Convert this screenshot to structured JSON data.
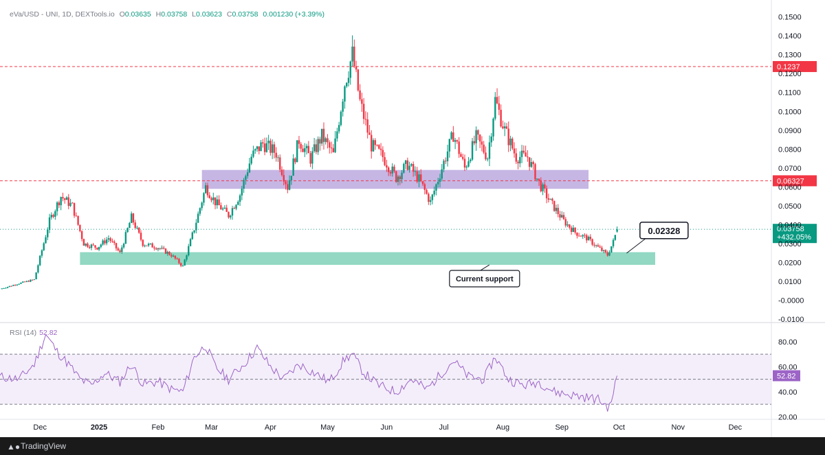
{
  "header": {
    "symbol": "eVa/USD - UNI, 1D, DEXTools.io",
    "o_label": "O",
    "o_value": "0.03635",
    "h_label": "H",
    "h_value": "0.03758",
    "l_label": "L",
    "l_value": "0.03623",
    "c_label": "C",
    "c_value": "0.03758",
    "change": "0.001230 (+3.39%)"
  },
  "rsi": {
    "label": "RSI (14)",
    "value": "52.82"
  },
  "footer": {
    "brand": "TradingView",
    "logo": "tradingview-logo-icon"
  },
  "colors": {
    "up": "#089981",
    "down": "#f23645",
    "rsi": "#9c64c6",
    "resistance_line": "#f23645",
    "support_zone": "#7fd1b9",
    "purple_zone": "#b39ddb"
  },
  "chart_data": [
    {
      "type": "line",
      "price_series_approx": [
        [
          "2024-11-10",
          0.006
        ],
        [
          "2024-11-20",
          0.009
        ],
        [
          "2024-11-28",
          0.011
        ],
        [
          "2024-12-06",
          0.042
        ],
        [
          "2024-12-12",
          0.055
        ],
        [
          "2024-12-18",
          0.05
        ],
        [
          "2024-12-24",
          0.03
        ],
        [
          "2024-12-31",
          0.028
        ],
        [
          "2025-01-06",
          0.033
        ],
        [
          "2025-01-12",
          0.025
        ],
        [
          "2025-01-18",
          0.044
        ],
        [
          "2025-01-24",
          0.03
        ],
        [
          "2025-02-01",
          0.028
        ],
        [
          "2025-02-08",
          0.024
        ],
        [
          "2025-02-14",
          0.018
        ],
        [
          "2025-02-20",
          0.038
        ],
        [
          "2025-02-26",
          0.06
        ],
        [
          "2025-03-03",
          0.052
        ],
        [
          "2025-03-10",
          0.045
        ],
        [
          "2025-03-16",
          0.056
        ],
        [
          "2025-03-22",
          0.076
        ],
        [
          "2025-03-28",
          0.083
        ],
        [
          "2025-04-04",
          0.078
        ],
        [
          "2025-04-10",
          0.06
        ],
        [
          "2025-04-16",
          0.085
        ],
        [
          "2025-04-22",
          0.075
        ],
        [
          "2025-04-28",
          0.087
        ],
        [
          "2025-05-04",
          0.077
        ],
        [
          "2025-05-10",
          0.115
        ],
        [
          "2025-05-14",
          0.13
        ],
        [
          "2025-05-18",
          0.105
        ],
        [
          "2025-05-24",
          0.082
        ],
        [
          "2025-05-30",
          0.076
        ],
        [
          "2025-06-06",
          0.065
        ],
        [
          "2025-06-12",
          0.072
        ],
        [
          "2025-06-18",
          0.064
        ],
        [
          "2025-06-24",
          0.052
        ],
        [
          "2025-06-30",
          0.07
        ],
        [
          "2025-07-06",
          0.088
        ],
        [
          "2025-07-12",
          0.07
        ],
        [
          "2025-07-18",
          0.086
        ],
        [
          "2025-07-24",
          0.076
        ],
        [
          "2025-07-28",
          0.106
        ],
        [
          "2025-08-02",
          0.09
        ],
        [
          "2025-08-08",
          0.076
        ],
        [
          "2025-08-14",
          0.076
        ],
        [
          "2025-08-20",
          0.062
        ],
        [
          "2025-08-26",
          0.052
        ],
        [
          "2025-09-02",
          0.042
        ],
        [
          "2025-09-08",
          0.036
        ],
        [
          "2025-09-14",
          0.033
        ],
        [
          "2025-09-20",
          0.028
        ],
        [
          "2025-09-25",
          0.024
        ],
        [
          "2025-09-28",
          0.031
        ],
        [
          "2025-09-30",
          0.0376
        ]
      ],
      "last_price": "0.03758",
      "last_change": "+432.05%",
      "y_axis_ticks": [
        "0.1500",
        "0.1400",
        "0.1300",
        "0.1200",
        "0.1100",
        "0.1000",
        "0.0900",
        "0.0800",
        "0.0700",
        "0.0600",
        "0.0500",
        "0.0400",
        "0.0300",
        "0.0200",
        "0.0100",
        "-0.0000",
        "-0.0100"
      ],
      "x_axis_ticks": [
        "Dec",
        "2025",
        "Feb",
        "Mar",
        "Apr",
        "May",
        "Jun",
        "Jul",
        "Aug",
        "Sep",
        "Oct",
        "Nov",
        "Dec"
      ],
      "ylim": [
        -0.011,
        0.156
      ],
      "xlim": [
        "2024-11-10",
        "2025-12-20"
      ],
      "resistance_lines": [
        {
          "value": 0.1237,
          "label": "0.1237"
        },
        {
          "value": 0.06327,
          "label": "0.06327"
        }
      ],
      "zones": [
        {
          "name": "purple-zone",
          "x_start": "2025-02-24",
          "x_end": "2025-09-15",
          "y_low": 0.059,
          "y_high": 0.069
        },
        {
          "name": "support-zone",
          "x_start": "2024-12-22",
          "x_end": "2025-10-20",
          "y_low": 0.0188,
          "y_high": 0.0255
        }
      ],
      "annotations": [
        {
          "text": "0.02328",
          "x": "2025-10-20",
          "y": 0.022
        },
        {
          "text": "Current support",
          "x": "2025-08-14",
          "y": 0.02
        }
      ]
    },
    {
      "type": "line",
      "name": "RSI (14)",
      "rsi_series_approx": [
        [
          "2024-11-10",
          52
        ],
        [
          "2024-11-20",
          50
        ],
        [
          "2024-11-28",
          62
        ],
        [
          "2024-12-04",
          86
        ],
        [
          "2024-12-10",
          72
        ],
        [
          "2024-12-16",
          62
        ],
        [
          "2024-12-22",
          50
        ],
        [
          "2024-12-28",
          45
        ],
        [
          "2025-01-04",
          55
        ],
        [
          "2025-01-12",
          48
        ],
        [
          "2025-01-18",
          62
        ],
        [
          "2025-01-24",
          46
        ],
        [
          "2025-02-01",
          48
        ],
        [
          "2025-02-08",
          42
        ],
        [
          "2025-02-14",
          40
        ],
        [
          "2025-02-20",
          68
        ],
        [
          "2025-02-26",
          77
        ],
        [
          "2025-03-03",
          60
        ],
        [
          "2025-03-10",
          50
        ],
        [
          "2025-03-18",
          62
        ],
        [
          "2025-03-25",
          75
        ],
        [
          "2025-04-01",
          60
        ],
        [
          "2025-04-08",
          50
        ],
        [
          "2025-04-16",
          62
        ],
        [
          "2025-04-24",
          55
        ],
        [
          "2025-05-02",
          48
        ],
        [
          "2025-05-10",
          66
        ],
        [
          "2025-05-14",
          70
        ],
        [
          "2025-05-20",
          55
        ],
        [
          "2025-05-28",
          45
        ],
        [
          "2025-06-06",
          40
        ],
        [
          "2025-06-14",
          50
        ],
        [
          "2025-06-22",
          42
        ],
        [
          "2025-06-30",
          55
        ],
        [
          "2025-07-06",
          65
        ],
        [
          "2025-07-14",
          52
        ],
        [
          "2025-07-22",
          50
        ],
        [
          "2025-07-28",
          68
        ],
        [
          "2025-08-04",
          50
        ],
        [
          "2025-08-12",
          45
        ],
        [
          "2025-08-20",
          48
        ],
        [
          "2025-08-28",
          40
        ],
        [
          "2025-09-04",
          38
        ],
        [
          "2025-09-12",
          36
        ],
        [
          "2025-09-20",
          34
        ],
        [
          "2025-09-26",
          27
        ],
        [
          "2025-09-30",
          52.82
        ]
      ],
      "y_axis_ticks": [
        "80.00",
        "60.00",
        "40.00",
        "20.00"
      ],
      "ylim": [
        18,
        92
      ],
      "bands": {
        "upper": 70,
        "middle": 50,
        "lower": 30
      }
    }
  ]
}
